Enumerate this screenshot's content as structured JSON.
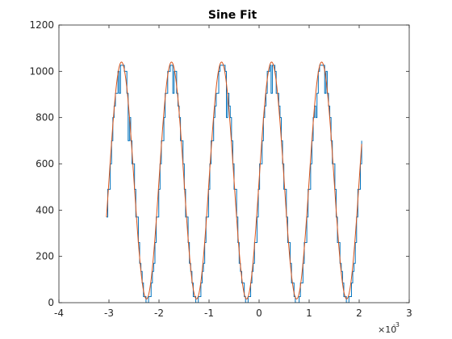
{
  "chart_data": {
    "type": "line",
    "title": "Sine Fit",
    "xlabel": "",
    "ylabel": "",
    "xlim": [
      -4,
      3
    ],
    "ylim": [
      0,
      1200
    ],
    "x_multiplier_label": "×10",
    "x_multiplier_exponent": "-3",
    "x_ticks": [
      -4,
      -3,
      -2,
      -1,
      0,
      1,
      2,
      3
    ],
    "x_tick_labels": [
      "-4",
      "-3",
      "-2",
      "-1",
      "0",
      "1",
      "2",
      "3"
    ],
    "y_ticks": [
      0,
      200,
      400,
      600,
      800,
      1000,
      1200
    ],
    "y_tick_labels": [
      "0",
      "200",
      "400",
      "600",
      "800",
      "1000",
      "1200"
    ],
    "grid": false,
    "box": true,
    "series": [
      {
        "style": "stairs",
        "color": "#0072BD",
        "x_range": [
          -3.05,
          2.05
        ],
        "approx_model": {
          "offset": 520,
          "amplitude": 515,
          "frequency_per_unit": 1.0,
          "peak_at": -2.75
        },
        "step_levels": [
          0,
          26,
          85,
          135,
          170,
          260,
          370,
          490,
          600,
          700,
          800,
          850,
          905,
          1000,
          1026
        ]
      },
      {
        "style": "line",
        "color": "#D95319",
        "x_range": [
          -3.05,
          2.05
        ],
        "offset": 528,
        "amplitude": 512,
        "frequency_per_unit": 1.0,
        "peak_at": -2.75
      }
    ]
  }
}
